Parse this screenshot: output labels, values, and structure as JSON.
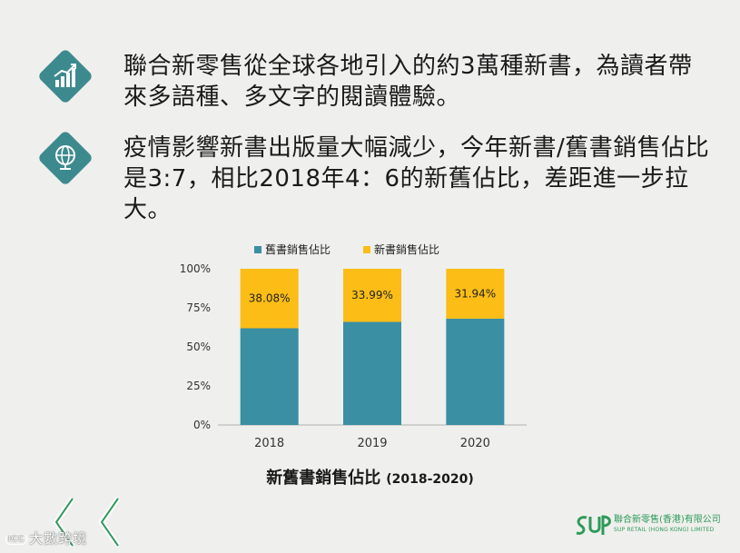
{
  "bullets": [
    {
      "icon": "growth-chart-icon",
      "text": "聯合新零售從全球各地引入的約3萬種新書，為讀者帶來多語種、多文字的閱讀體驗。"
    },
    {
      "icon": "globe-icon",
      "text": "疫情影響新書出版量大幅減少，今年新書/舊書銷售佔比是3:7，相比2018年4：6的新舊佔比，差距進一步拉大。"
    }
  ],
  "colors": {
    "old": "#3a8fa3",
    "new": "#fbbd16",
    "green": "#2e9a5a",
    "icon_bg": "#3d8a8e"
  },
  "chart_title": {
    "main": "新舊書銷售佔比",
    "sub": "(2018-2020)"
  },
  "chart_data": {
    "type": "bar",
    "stacked": true,
    "categories": [
      "2018",
      "2019",
      "2020"
    ],
    "series": [
      {
        "name": "舊書銷售佔比",
        "values": [
          61.92,
          66.01,
          68.06
        ]
      },
      {
        "name": "新書銷售佔比",
        "values": [
          38.08,
          33.99,
          31.94
        ],
        "labels": [
          "38.08%",
          "33.99%",
          "31.94%"
        ]
      }
    ],
    "y_ticks": [
      "0%",
      "25%",
      "50%",
      "75%",
      "100%"
    ],
    "ylim": [
      0,
      100
    ],
    "legend_position": "top"
  },
  "logo": {
    "name": "聯合新零售(香港)有限公司",
    "en": "SUP RETAIL (HONG KONG) LIMITED"
  },
  "watermark": {
    "badge": "ICC",
    "text": "大數跨境"
  }
}
